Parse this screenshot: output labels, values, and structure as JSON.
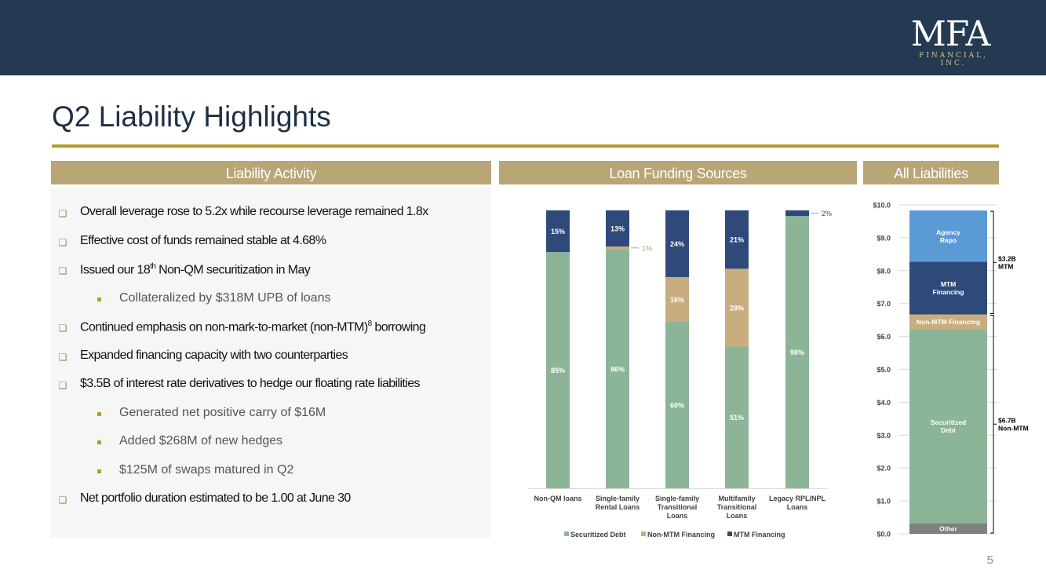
{
  "logo": {
    "primary": "MFA",
    "secondary": "FINANCIAL, INC."
  },
  "title": "Q2 Liability Highlights",
  "sections": {
    "activity": "Liability Activity",
    "funding": "Loan Funding Sources",
    "all_liabilities": "All Liabilities"
  },
  "bullets": [
    {
      "level": 1,
      "text": "Overall leverage rose to 5.2x while recourse leverage remained 1.8x"
    },
    {
      "level": 1,
      "text": "Effective cost of funds remained stable at 4.68%"
    },
    {
      "level": 1,
      "text_pre": "Issued our 18",
      "sup": "th",
      "text_post": " Non-QM securitization in May"
    },
    {
      "level": 2,
      "text": "Collateralized by $318M UPB of loans"
    },
    {
      "level": 1,
      "text_pre": "Continued emphasis on non-mark-to-market (non-MTM)",
      "sup": "8",
      "text_post": " borrowing"
    },
    {
      "level": 1,
      "text": "Expanded financing capacity with two counterparties"
    },
    {
      "level": 1,
      "text": "$3.5B of interest rate derivatives to hedge our floating rate liabilities"
    },
    {
      "level": 2,
      "text": "Generated net positive carry of $16M"
    },
    {
      "level": 2,
      "text": "Added $268M of new hedges"
    },
    {
      "level": 2,
      "text": "$125M of swaps matured in Q2"
    },
    {
      "level": 1,
      "text": "Net portfolio duration estimated to be 1.00 at June 30"
    }
  ],
  "page_number": "5",
  "colors": {
    "header": "#233a52",
    "gold": "#b59a2c",
    "section": "#b8a677",
    "securitized": "#8cb497",
    "non_mtm": "#c8ad7f",
    "mtm": "#2f4a7a",
    "agency": "#5b9bd5",
    "other": "#7f7f7f"
  },
  "chart_data": [
    {
      "type": "bar",
      "stacked": true,
      "title": "Loan Funding Sources",
      "categories": [
        [
          "Non-QM loans"
        ],
        [
          "Single-family",
          "Rental Loans"
        ],
        [
          "Single-family",
          "Transitional",
          "Loans"
        ],
        [
          "Multifamily",
          "Transitional",
          "Loans"
        ],
        [
          "Legacy RPL/NPL",
          "Loans"
        ]
      ],
      "series": [
        {
          "name": "Securitized Debt",
          "values": [
            85,
            86,
            60,
            51,
            98
          ],
          "labels": [
            "85%",
            "86%",
            "60%",
            "51%",
            "98%"
          ]
        },
        {
          "name": "Non-MTM Financing",
          "values": [
            0,
            1,
            16,
            28,
            0
          ],
          "labels": [
            "",
            "1%",
            "16%",
            "28%",
            ""
          ]
        },
        {
          "name": "MTM Financing",
          "values": [
            15,
            13,
            24,
            21,
            2
          ],
          "labels": [
            "15%",
            "13%",
            "24%",
            "21%",
            "2%"
          ]
        }
      ],
      "ylim": [
        0,
        100
      ]
    },
    {
      "type": "bar",
      "stacked": true,
      "title": "All Liabilities",
      "yticks": [
        "$0.0",
        "$1.0",
        "$2.0",
        "$3.0",
        "$4.0",
        "$5.0",
        "$6.0",
        "$7.0",
        "$8.0",
        "$9.0",
        "$10.0"
      ],
      "ylim": [
        0,
        10
      ],
      "segments": [
        {
          "name": "Other",
          "value": 0.32,
          "label": "Other"
        },
        {
          "name": "Securitized Debt",
          "value": 5.9,
          "label": "Securitized Debt"
        },
        {
          "name": "Non-MTM Financing",
          "value": 0.45,
          "label": "Non-MTM Financing"
        },
        {
          "name": "MTM Financing",
          "value": 1.6,
          "label": "MTM Financing"
        },
        {
          "name": "Agency Repo",
          "value": 1.56,
          "label": "Agency Repo"
        }
      ],
      "brackets": [
        {
          "label": "$3.2B MTM",
          "from": 6.67,
          "to": 9.83
        },
        {
          "label": "$6.7B Non-MTM",
          "from": 0,
          "to": 6.67
        }
      ]
    }
  ]
}
